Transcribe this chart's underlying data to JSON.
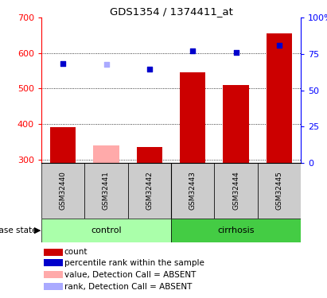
{
  "title": "GDS1354 / 1374411_at",
  "samples": [
    "GSM32440",
    "GSM32441",
    "GSM32442",
    "GSM32443",
    "GSM32444",
    "GSM32445"
  ],
  "bar_values": [
    390,
    340,
    335,
    545,
    510,
    655
  ],
  "bar_colors": [
    "#cc0000",
    "#ffaaaa",
    "#cc0000",
    "#cc0000",
    "#cc0000",
    "#cc0000"
  ],
  "dot_values": [
    570,
    568,
    554,
    607,
    601,
    622
  ],
  "dot_colors": [
    "#0000cc",
    "#aaaaff",
    "#0000cc",
    "#0000cc",
    "#0000cc",
    "#0000cc"
  ],
  "ylim_left": [
    290,
    700
  ],
  "ylim_right": [
    0,
    100
  ],
  "yticks_left": [
    300,
    400,
    500,
    600,
    700
  ],
  "yticks_right": [
    0,
    25,
    50,
    75,
    100
  ],
  "right_tick_labels": [
    "0",
    "25",
    "50",
    "75",
    "100%"
  ],
  "grid_values": [
    300,
    400,
    500,
    600
  ],
  "control_color": "#aaffaa",
  "cirrhosis_color": "#44cc44",
  "legend_items": [
    {
      "color": "#cc0000",
      "label": "count"
    },
    {
      "color": "#0000cc",
      "label": "percentile rank within the sample"
    },
    {
      "color": "#ffaaaa",
      "label": "value, Detection Call = ABSENT"
    },
    {
      "color": "#aaaaff",
      "label": "rank, Detection Call = ABSENT"
    }
  ]
}
